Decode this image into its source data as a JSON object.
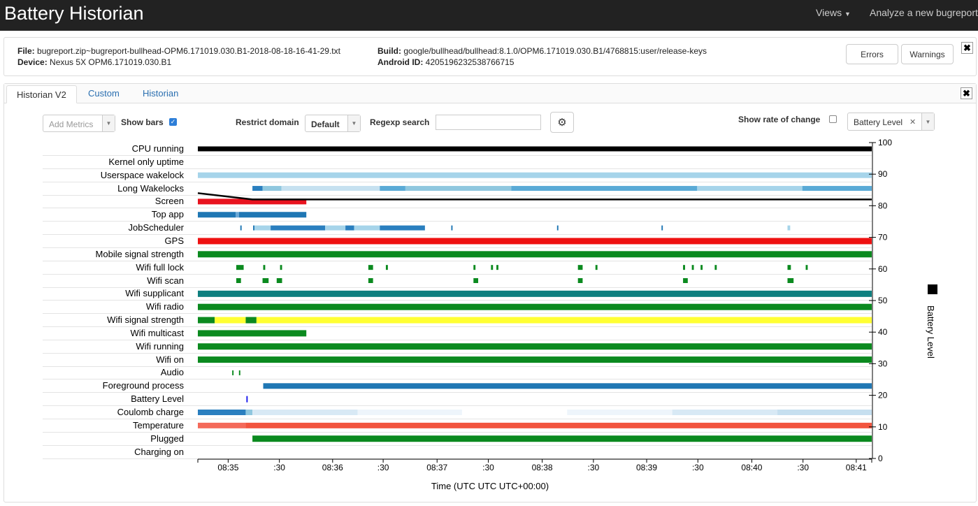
{
  "navbar": {
    "brand": "Battery Historian",
    "views": "Views",
    "analyze": "Analyze a new bugreport"
  },
  "info": {
    "file_label": "File:",
    "file": "bugreport.zip~bugreport-bullhead-OPM6.171019.030.B1-2018-08-18-16-41-29.txt",
    "device_label": "Device:",
    "device": "Nexus 5X OPM6.171019.030.B1",
    "build_label": "Build:",
    "build": "google/bullhead/bullhead:8.1.0/OPM6.171019.030.B1/4768815:user/release-keys",
    "android_id_label": "Android ID:",
    "android_id": "4205196232538766715",
    "errors": "Errors",
    "warnings": "Warnings",
    "close": "✖"
  },
  "tabs": [
    {
      "label": "Historian V2"
    },
    {
      "label": "Custom"
    },
    {
      "label": "Historian"
    }
  ],
  "controls": {
    "add_metrics": "Add Metrics",
    "show_bars": "Show bars",
    "restrict_domain": "Restrict domain",
    "domain_value": "Default",
    "regexp_search": "Regexp search",
    "regexp_value": "",
    "show_rate": "Show rate of change",
    "metric_value": "Battery Level",
    "close": "✖"
  },
  "chart_data": {
    "type": "timeline",
    "rows": [
      {
        "label": "CPU running",
        "bars": [
          {
            "start": 0.0,
            "end": 1.0,
            "color": "#000000",
            "h": 7
          }
        ]
      },
      {
        "label": "Kernel only uptime",
        "bars": []
      },
      {
        "label": "Userspace wakelock",
        "bars": [
          {
            "start": 0.0,
            "end": 1.0,
            "color": "#a6d4ea",
            "h": 8
          }
        ]
      },
      {
        "label": "Long Wakelocks",
        "bars": [
          {
            "start": 0.081,
            "end": 0.096,
            "color": "#2a7fbf",
            "h": 7
          },
          {
            "start": 0.096,
            "end": 0.124,
            "color": "#8fc7df",
            "h": 7
          },
          {
            "start": 0.124,
            "end": 0.27,
            "color": "#c6e1f0",
            "h": 7
          },
          {
            "start": 0.27,
            "end": 0.308,
            "color": "#5aaad6",
            "h": 7
          },
          {
            "start": 0.308,
            "end": 0.465,
            "color": "#8fc7df",
            "h": 7
          },
          {
            "start": 0.465,
            "end": 0.741,
            "color": "#5aaad6",
            "h": 7
          },
          {
            "start": 0.741,
            "end": 0.897,
            "color": "#a6d4ea",
            "h": 7
          },
          {
            "start": 0.897,
            "end": 1.0,
            "color": "#5aaad6",
            "h": 7
          }
        ]
      },
      {
        "label": "Screen",
        "bars": [
          {
            "start": 0.0,
            "end": 0.161,
            "color": "#e8131f",
            "h": 8
          }
        ]
      },
      {
        "label": "Top app",
        "bars": [
          {
            "start": 0.0,
            "end": 0.056,
            "color": "#1f77b4",
            "h": 8
          },
          {
            "start": 0.056,
            "end": 0.061,
            "color": "#6aa8d6",
            "h": 8
          },
          {
            "start": 0.061,
            "end": 0.161,
            "color": "#1f77b4",
            "h": 8
          }
        ]
      },
      {
        "label": "JobScheduler",
        "bars": [
          {
            "start": 0.063,
            "end": 0.065,
            "color": "#1f77b4",
            "h": 7
          },
          {
            "start": 0.082,
            "end": 0.084,
            "color": "#1f77b4",
            "h": 7
          },
          {
            "start": 0.084,
            "end": 0.108,
            "color": "#a6d4ea",
            "h": 7
          },
          {
            "start": 0.108,
            "end": 0.189,
            "color": "#2a7fbf",
            "h": 7
          },
          {
            "start": 0.189,
            "end": 0.219,
            "color": "#a6d4ea",
            "h": 7
          },
          {
            "start": 0.219,
            "end": 0.232,
            "color": "#2a7fbf",
            "h": 7
          },
          {
            "start": 0.232,
            "end": 0.27,
            "color": "#a6d4ea",
            "h": 7
          },
          {
            "start": 0.27,
            "end": 0.337,
            "color": "#2a7fbf",
            "h": 7
          },
          {
            "start": 0.376,
            "end": 0.378,
            "color": "#1f77b4",
            "h": 7
          },
          {
            "start": 0.533,
            "end": 0.535,
            "color": "#1f77b4",
            "h": 7
          },
          {
            "start": 0.688,
            "end": 0.69,
            "color": "#1f77b4",
            "h": 7
          },
          {
            "start": 0.875,
            "end": 0.879,
            "color": "#a6d4ea",
            "h": 7
          }
        ]
      },
      {
        "label": "GPS",
        "bars": [
          {
            "start": 0.0,
            "end": 1.0,
            "color": "#ee1111",
            "h": 9
          }
        ]
      },
      {
        "label": "Mobile signal strength",
        "bars": [
          {
            "start": 0.0,
            "end": 1.0,
            "color": "#0b8a1f",
            "h": 9
          }
        ]
      },
      {
        "label": "Wifi full lock",
        "bars": [
          {
            "start": 0.057,
            "end": 0.068,
            "color": "#0b8a1f",
            "h": 7
          },
          {
            "start": 0.097,
            "end": 0.1,
            "color": "#0b8a1f",
            "h": 7
          },
          {
            "start": 0.122,
            "end": 0.125,
            "color": "#0b8a1f",
            "h": 7
          },
          {
            "start": 0.253,
            "end": 0.26,
            "color": "#0b8a1f",
            "h": 7
          },
          {
            "start": 0.279,
            "end": 0.282,
            "color": "#0b8a1f",
            "h": 7
          },
          {
            "start": 0.409,
            "end": 0.412,
            "color": "#0b8a1f",
            "h": 7
          },
          {
            "start": 0.435,
            "end": 0.438,
            "color": "#0b8a1f",
            "h": 7
          },
          {
            "start": 0.443,
            "end": 0.446,
            "color": "#0b8a1f",
            "h": 7
          },
          {
            "start": 0.564,
            "end": 0.571,
            "color": "#0b8a1f",
            "h": 7
          },
          {
            "start": 0.59,
            "end": 0.593,
            "color": "#0b8a1f",
            "h": 7
          },
          {
            "start": 0.72,
            "end": 0.723,
            "color": "#0b8a1f",
            "h": 7
          },
          {
            "start": 0.733,
            "end": 0.736,
            "color": "#0b8a1f",
            "h": 7
          },
          {
            "start": 0.746,
            "end": 0.749,
            "color": "#0b8a1f",
            "h": 7
          },
          {
            "start": 0.767,
            "end": 0.77,
            "color": "#0b8a1f",
            "h": 7
          },
          {
            "start": 0.875,
            "end": 0.88,
            "color": "#0b8a1f",
            "h": 7
          },
          {
            "start": 0.902,
            "end": 0.905,
            "color": "#0b8a1f",
            "h": 7
          }
        ]
      },
      {
        "label": "Wifi scan",
        "bars": [
          {
            "start": 0.057,
            "end": 0.064,
            "color": "#0b8a1f",
            "h": 7
          },
          {
            "start": 0.096,
            "end": 0.105,
            "color": "#0b8a1f",
            "h": 7
          },
          {
            "start": 0.117,
            "end": 0.125,
            "color": "#0b8a1f",
            "h": 7
          },
          {
            "start": 0.253,
            "end": 0.26,
            "color": "#0b8a1f",
            "h": 7
          },
          {
            "start": 0.409,
            "end": 0.416,
            "color": "#0b8a1f",
            "h": 7
          },
          {
            "start": 0.564,
            "end": 0.571,
            "color": "#0b8a1f",
            "h": 7
          },
          {
            "start": 0.72,
            "end": 0.727,
            "color": "#0b8a1f",
            "h": 7
          },
          {
            "start": 0.875,
            "end": 0.884,
            "color": "#0b8a1f",
            "h": 7
          }
        ]
      },
      {
        "label": "Wifi supplicant",
        "bars": [
          {
            "start": 0.0,
            "end": 1.0,
            "color": "#0e7f7f",
            "h": 9
          }
        ]
      },
      {
        "label": "Wifi radio",
        "bars": [
          {
            "start": 0.0,
            "end": 1.0,
            "color": "#0b8a1f",
            "h": 9
          }
        ]
      },
      {
        "label": "Wifi signal strength",
        "bars": [
          {
            "start": 0.0,
            "end": 0.025,
            "color": "#0b8a1f",
            "h": 9
          },
          {
            "start": 0.025,
            "end": 0.071,
            "color": "#ffff33",
            "h": 9
          },
          {
            "start": 0.071,
            "end": 0.087,
            "color": "#0b8a1f",
            "h": 9
          },
          {
            "start": 0.087,
            "end": 1.0,
            "color": "#ffff33",
            "h": 9
          }
        ]
      },
      {
        "label": "Wifi multicast",
        "bars": [
          {
            "start": 0.0,
            "end": 0.161,
            "color": "#0b8a1f",
            "h": 9
          }
        ]
      },
      {
        "label": "Wifi running",
        "bars": [
          {
            "start": 0.0,
            "end": 1.0,
            "color": "#0b8a1f",
            "h": 9
          }
        ]
      },
      {
        "label": "Wifi on",
        "bars": [
          {
            "start": 0.0,
            "end": 1.0,
            "color": "#0b8a1f",
            "h": 9
          }
        ]
      },
      {
        "label": "Audio",
        "bars": [
          {
            "start": 0.051,
            "end": 0.053,
            "color": "#0b8a1f",
            "h": 7
          },
          {
            "start": 0.061,
            "end": 0.063,
            "color": "#0b8a1f",
            "h": 7
          }
        ]
      },
      {
        "label": "Foreground process",
        "bars": [
          {
            "start": 0.097,
            "end": 1.0,
            "color": "#1f77b4",
            "h": 8
          }
        ]
      },
      {
        "label": "Battery Level",
        "bars": [
          {
            "start": 0.072,
            "end": 0.074,
            "color": "#1a1aee",
            "h": 9
          }
        ]
      },
      {
        "label": "Coulomb charge",
        "bars": [
          {
            "start": 0.0,
            "end": 0.071,
            "color": "#2a7fbf",
            "h": 8
          },
          {
            "start": 0.071,
            "end": 0.081,
            "color": "#8fc7df",
            "h": 8
          },
          {
            "start": 0.081,
            "end": 0.237,
            "color": "#d8e9f5",
            "h": 8
          },
          {
            "start": 0.237,
            "end": 0.392,
            "color": "#eef5fb",
            "h": 8
          },
          {
            "start": 0.548,
            "end": 0.704,
            "color": "#eef5fb",
            "h": 8
          },
          {
            "start": 0.704,
            "end": 0.86,
            "color": "#d8e9f5",
            "h": 8
          },
          {
            "start": 0.86,
            "end": 1.0,
            "color": "#c6dfef",
            "h": 8
          }
        ]
      },
      {
        "label": "Temperature",
        "bars": [
          {
            "start": 0.0,
            "end": 0.071,
            "color": "#f46a5a",
            "h": 8
          },
          {
            "start": 0.071,
            "end": 1.0,
            "color": "#f2553f",
            "h": 8
          }
        ]
      },
      {
        "label": "Plugged",
        "bars": [
          {
            "start": 0.081,
            "end": 1.0,
            "color": "#0b8a1f",
            "h": 9
          }
        ]
      },
      {
        "label": "Charging on",
        "bars": []
      }
    ],
    "battery_line": [
      {
        "t": 0.0,
        "v": 84
      },
      {
        "t": 0.081,
        "v": 82
      },
      {
        "t": 1.0,
        "v": 82
      }
    ],
    "x_ticks": [
      "08:35",
      ":30",
      "08:36",
      ":30",
      "08:37",
      ":30",
      "08:38",
      ":30",
      "08:39",
      ":30",
      "08:40",
      ":30",
      "08:41"
    ],
    "x_tick_pos": [
      0.045,
      0.121,
      0.2,
      0.275,
      0.355,
      0.431,
      0.511,
      0.587,
      0.666,
      0.742,
      0.822,
      0.898,
      0.977
    ],
    "y_ticks": [
      100,
      90,
      80,
      70,
      60,
      50,
      40,
      30,
      20,
      10,
      0
    ],
    "ylim": [
      0,
      100
    ],
    "xlabel": "Time (UTC UTC UTC+00:00)",
    "ylabel": "Battery Level",
    "legend_color": "#000000"
  }
}
